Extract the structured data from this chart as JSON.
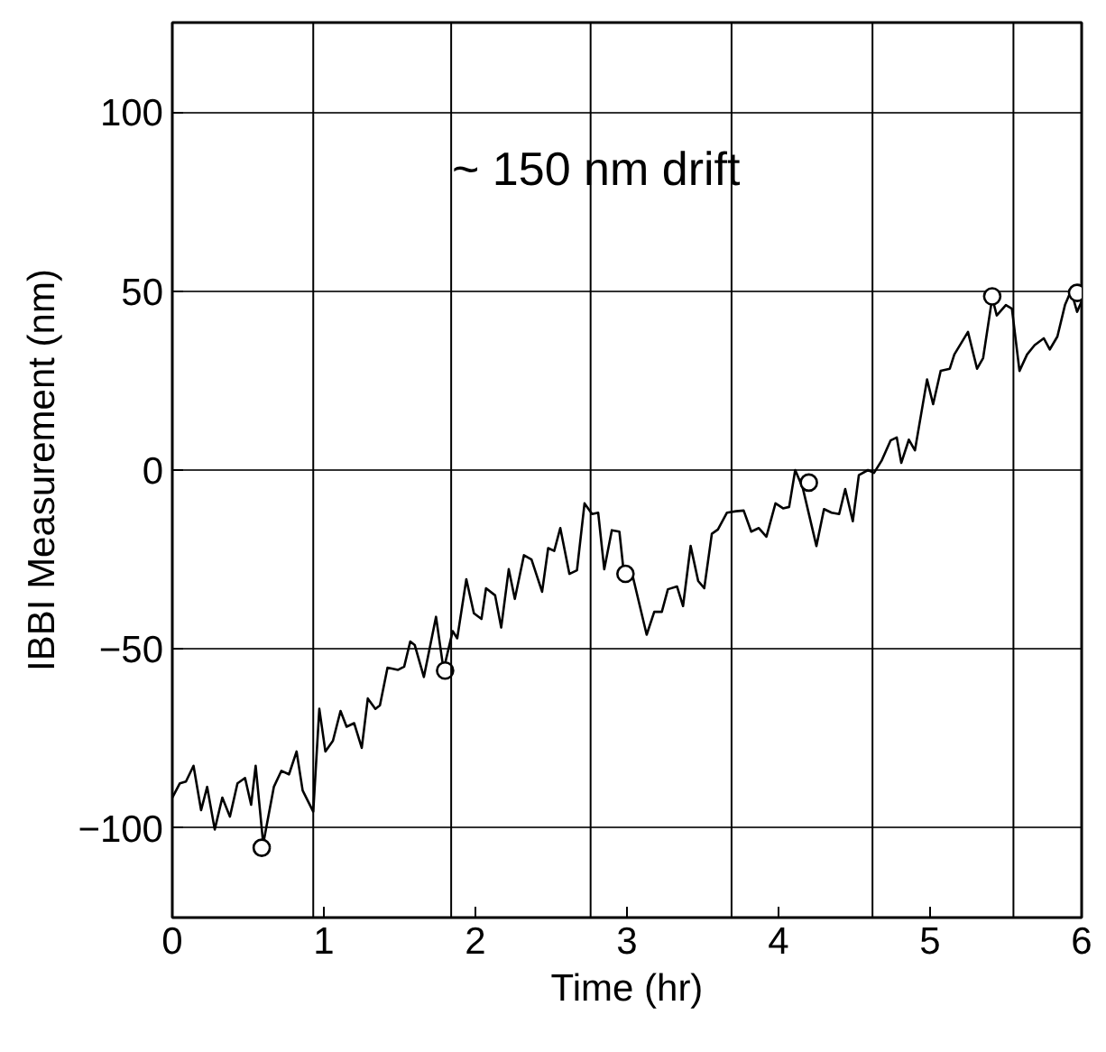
{
  "chart_data": {
    "type": "line",
    "xlabel": "Time (hr)",
    "ylabel": "IBBI Measurement (nm)",
    "annotations": [
      "~ 150 nm drift"
    ],
    "xlim": [
      0,
      6
    ],
    "ylim": [
      -125,
      125
    ],
    "xticks": [
      0,
      1,
      2,
      3,
      4,
      5,
      6
    ],
    "yticks": [
      -100,
      -50,
      0,
      50,
      100
    ],
    "grid": "y",
    "series": [
      {
        "color": "#000000",
        "marker": "none",
        "line_style": "solid",
        "x": [
          0,
          0.05,
          0.09,
          0.14,
          0.19,
          0.23,
          0.28,
          0.33,
          0.38,
          0.43,
          0.48,
          0.52,
          0.55,
          0.6,
          0.67,
          0.72,
          0.77,
          0.82,
          0.86,
          0.93,
          0.97,
          1.01,
          1.06,
          1.11,
          1.15,
          1.2,
          1.25,
          1.29,
          1.34,
          1.37,
          1.42,
          1.49,
          1.53,
          1.57,
          1.6,
          1.66,
          1.74,
          1.79,
          1.85,
          1.88,
          1.94,
          1.99,
          2.04,
          2.07,
          2.13,
          2.17,
          2.22,
          2.26,
          2.32,
          2.37,
          2.44,
          2.48,
          2.52,
          2.56,
          2.62,
          2.67,
          2.72,
          2.77,
          2.81,
          2.85,
          2.9,
          2.95,
          2.98,
          3.04,
          3.13,
          3.18,
          3.23,
          3.27,
          3.33,
          3.37,
          3.42,
          3.47,
          3.51,
          3.56,
          3.6,
          3.66,
          3.72,
          3.77,
          3.82,
          3.87,
          3.92,
          3.98,
          4.03,
          4.07,
          4.11,
          4.16,
          4.25,
          4.3,
          4.35,
          4.4,
          4.44,
          4.49,
          4.53,
          4.59,
          4.63,
          4.68,
          4.74,
          4.78,
          4.81,
          4.86,
          4.9,
          4.98,
          5.02,
          5.07,
          5.13,
          5.16,
          5.25,
          5.31,
          5.35,
          5.41,
          5.44,
          5.5,
          5.54,
          5.59,
          5.64,
          5.69,
          5.75,
          5.79,
          5.84,
          5.89,
          5.93,
          5.97,
          6.0
        ],
        "values": [
          -91.5,
          -87.5,
          -87,
          -82.6,
          -95,
          -88.5,
          -100.4,
          -91.5,
          -96.8,
          -87.5,
          -86,
          -93.5,
          -82.6,
          -104.4,
          -88.5,
          -84,
          -85,
          -78.6,
          -89.5,
          -95.4,
          -66.7,
          -78.6,
          -75.6,
          -67.3,
          -71.7,
          -70.7,
          -77.6,
          -63.8,
          -66.7,
          -65.7,
          -55.2,
          -55.8,
          -54.9,
          -47.9,
          -48.9,
          -57.8,
          -41,
          -55.8,
          -45,
          -47,
          -30.5,
          -40,
          -41.6,
          -33,
          -35,
          -44,
          -27.7,
          -36,
          -23.8,
          -25,
          -34,
          -21.8,
          -22.6,
          -16.2,
          -29,
          -28,
          -9.3,
          -12.3,
          -11.9,
          -27.7,
          -16.8,
          -17.2,
          -29,
          -30,
          -46,
          -39.6,
          -39.6,
          -33.3,
          -32.5,
          -38,
          -21.2,
          -31,
          -33,
          -17.8,
          -16.6,
          -11.9,
          -11.5,
          -11.3,
          -17.2,
          -16.2,
          -18.6,
          -9.3,
          -10.7,
          -10.3,
          0,
          -5,
          -21.2,
          -10.9,
          -11.9,
          -12.3,
          -5.3,
          -14.3,
          -1.4,
          0,
          -0.8,
          2.6,
          8.3,
          9.1,
          2,
          8.5,
          5.5,
          25.3,
          18.4,
          27.7,
          28.3,
          32.3,
          38.6,
          28.3,
          31.3,
          48.1,
          43.2,
          46.1,
          45.1,
          27.7,
          32.3,
          34.9,
          36.8,
          33.7,
          37.3,
          46.1,
          50.1,
          44.2,
          47.1
        ]
      },
      {
        "type": "scatter",
        "color": "#000000",
        "marker": "circle",
        "x": [
          0.59,
          1.8,
          2.99,
          4.2,
          5.41,
          5.97
        ],
        "values": [
          -105.5,
          -56,
          -29,
          -3.5,
          48.5,
          49.5
        ]
      }
    ],
    "ref_lines": [
      {
        "axis": "x",
        "value": 0.93,
        "color": "#000000"
      },
      {
        "axis": "x",
        "value": 1.84,
        "color": "#000000"
      },
      {
        "axis": "x",
        "value": 2.76,
        "color": "#000000"
      },
      {
        "axis": "x",
        "value": 3.69,
        "color": "#000000"
      },
      {
        "axis": "x",
        "value": 4.62,
        "color": "#000000"
      },
      {
        "axis": "x",
        "value": 5.55,
        "color": "#000000"
      }
    ]
  }
}
